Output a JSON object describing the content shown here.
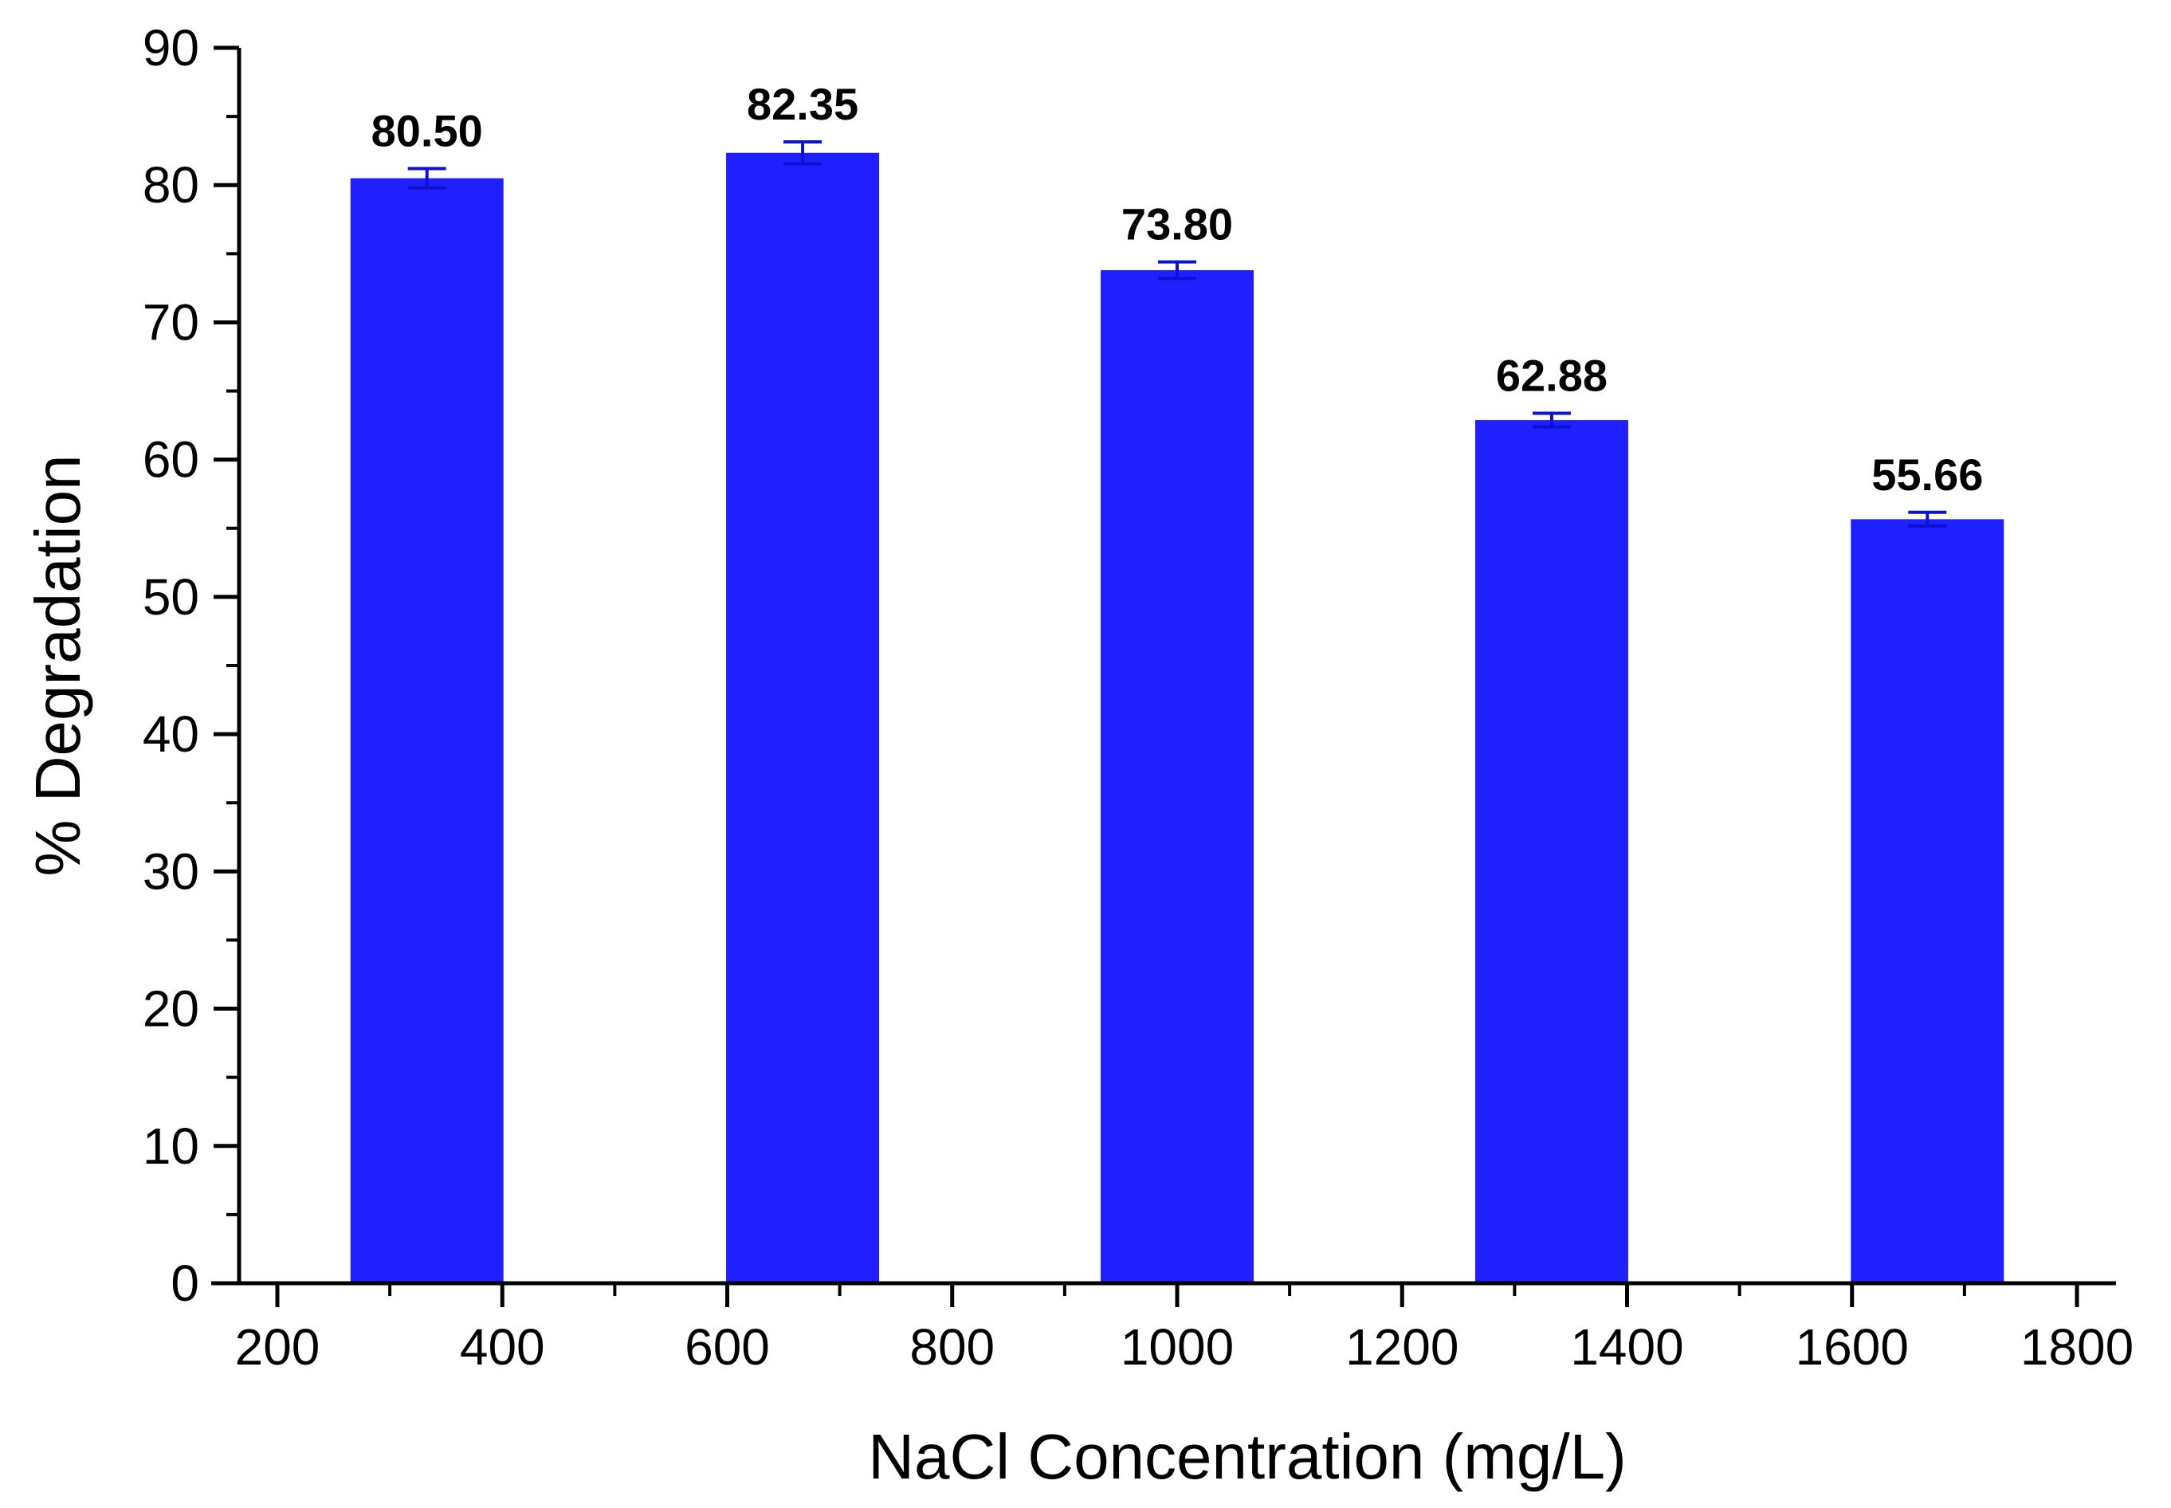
{
  "chart_data": {
    "type": "bar",
    "xlabel": "NaCl Concentration (mg/L)",
    "ylabel": "% Degradation",
    "xlim": [
      200,
      1800
    ],
    "ylim": [
      0,
      90
    ],
    "xticks": [
      200,
      400,
      600,
      800,
      1000,
      1200,
      1400,
      1600,
      1800
    ],
    "yticks": [
      0,
      10,
      20,
      30,
      40,
      50,
      60,
      70,
      80,
      90
    ],
    "grid": false,
    "bar_color": "#1f1fff",
    "series": [
      {
        "x": [
          333,
          667,
          1000,
          1333,
          1667
        ],
        "values": [
          80.5,
          82.35,
          73.8,
          62.88,
          55.66
        ],
        "errors": [
          0.7,
          0.8,
          0.6,
          0.5,
          0.5
        ],
        "labels": [
          "80.50",
          "82.35",
          "73.80",
          "62.88",
          "55.66"
        ]
      }
    ]
  }
}
